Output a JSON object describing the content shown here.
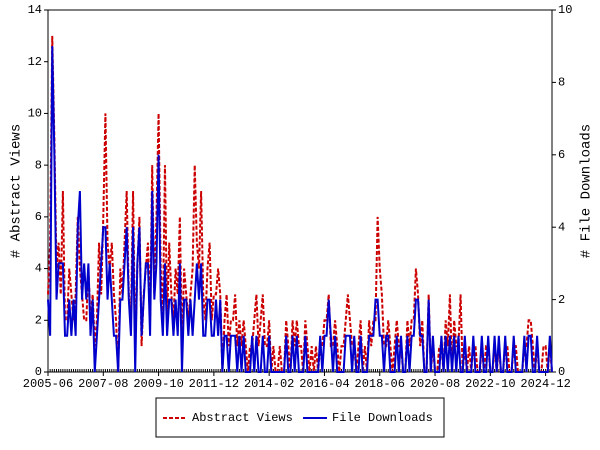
{
  "chart_data": {
    "type": "line",
    "y_label": "# Abstract Views",
    "y2_label": "# File Downloads",
    "x": [
      "2005-06",
      "2005-07",
      "2005-08",
      "2005-09",
      "2005-10",
      "2005-11",
      "2005-12",
      "2006-01",
      "2006-02",
      "2006-03",
      "2006-04",
      "2006-05",
      "2006-06",
      "2006-07",
      "2006-08",
      "2006-09",
      "2006-10",
      "2006-11",
      "2006-12",
      "2007-01",
      "2007-02",
      "2007-03",
      "2007-04",
      "2007-05",
      "2007-06",
      "2007-07",
      "2007-08",
      "2007-09",
      "2007-10",
      "2007-11",
      "2007-12",
      "2008-01",
      "2008-02",
      "2008-03",
      "2008-04",
      "2008-05",
      "2008-06",
      "2008-07",
      "2008-08",
      "2008-09",
      "2008-10",
      "2008-11",
      "2008-12",
      "2009-01",
      "2009-02",
      "2009-03",
      "2009-04",
      "2009-05",
      "2009-06",
      "2009-07",
      "2009-08",
      "2009-09",
      "2009-10",
      "2009-11",
      "2009-12",
      "2010-01",
      "2010-02",
      "2010-03",
      "2010-04",
      "2010-05",
      "2010-06",
      "2010-07",
      "2010-08",
      "2010-09",
      "2010-10",
      "2010-11",
      "2010-12",
      "2011-01",
      "2011-02",
      "2011-03",
      "2011-04",
      "2011-05",
      "2011-06",
      "2011-07",
      "2011-08",
      "2011-09",
      "2011-10",
      "2011-11",
      "2011-12",
      "2012-01",
      "2012-02",
      "2012-03",
      "2012-04",
      "2012-05",
      "2012-06",
      "2012-07",
      "2012-08",
      "2012-09",
      "2012-10",
      "2012-11",
      "2012-12",
      "2013-01",
      "2013-02",
      "2013-03",
      "2013-04",
      "2013-05",
      "2013-06",
      "2013-07",
      "2013-08",
      "2013-09",
      "2013-10",
      "2013-11",
      "2013-12",
      "2014-01",
      "2014-02",
      "2014-03",
      "2014-04",
      "2014-05",
      "2014-06",
      "2014-07",
      "2014-08",
      "2014-09",
      "2014-10",
      "2014-11",
      "2014-12",
      "2015-01",
      "2015-02",
      "2015-03",
      "2015-04",
      "2015-05",
      "2015-06",
      "2015-07",
      "2015-08",
      "2015-09",
      "2015-10",
      "2015-11",
      "2015-12",
      "2016-01",
      "2016-02",
      "2016-03",
      "2016-04",
      "2016-05",
      "2016-06",
      "2016-07",
      "2016-08",
      "2016-09",
      "2016-10",
      "2016-11",
      "2016-12",
      "2017-01",
      "2017-02",
      "2017-03",
      "2017-04",
      "2017-05",
      "2017-06",
      "2017-07",
      "2017-08",
      "2017-09",
      "2017-10",
      "2017-11",
      "2017-12",
      "2018-01",
      "2018-02",
      "2018-03",
      "2018-04",
      "2018-05",
      "2018-06",
      "2018-07",
      "2018-08",
      "2018-09",
      "2018-10",
      "2018-11",
      "2018-12",
      "2019-01",
      "2019-02",
      "2019-03",
      "2019-04",
      "2019-05",
      "2019-06",
      "2019-07",
      "2019-08",
      "2019-09",
      "2019-10",
      "2019-11",
      "2019-12",
      "2020-01",
      "2020-02",
      "2020-03",
      "2020-04",
      "2020-05",
      "2020-06",
      "2020-07",
      "2020-08",
      "2020-09",
      "2020-10",
      "2020-11",
      "2020-12",
      "2021-01",
      "2021-02",
      "2021-03",
      "2021-04",
      "2021-05",
      "2021-06",
      "2021-07",
      "2021-08",
      "2021-09",
      "2021-10",
      "2021-11",
      "2021-12",
      "2022-01",
      "2022-02",
      "2022-03",
      "2022-04",
      "2022-05",
      "2022-06",
      "2022-07",
      "2022-08",
      "2022-09",
      "2022-10",
      "2022-11",
      "2022-12",
      "2023-01",
      "2023-02",
      "2023-03",
      "2023-04",
      "2023-05",
      "2023-06",
      "2023-07",
      "2023-08",
      "2023-09",
      "2023-10",
      "2023-11",
      "2023-12",
      "2024-01",
      "2024-02",
      "2024-03",
      "2024-04",
      "2024-05",
      "2024-06",
      "2024-07",
      "2024-08",
      "2024-09",
      "2024-10",
      "2024-11",
      "2024-12",
      "2025-01",
      "2025-02",
      "2025-03"
    ],
    "xticks": [
      "2005-06",
      "2007-08",
      "2009-10",
      "2011-12",
      "2014-02",
      "2016-04",
      "2018-06",
      "2020-08",
      "2022-10",
      "2024-12"
    ],
    "series": [
      {
        "name": "Abstract Views",
        "color": "#cc0000",
        "dash": true,
        "values": [
          3,
          5,
          13,
          9,
          4,
          5,
          3,
          7,
          2,
          2,
          4,
          3,
          2,
          3,
          6,
          4,
          3,
          2,
          2,
          4,
          2,
          3,
          1,
          2,
          5,
          3,
          6,
          10,
          5,
          4,
          5,
          3,
          2,
          0,
          4,
          3,
          5,
          7,
          3,
          2,
          7,
          1,
          4,
          6,
          1,
          3,
          4,
          5,
          2,
          8,
          3,
          6,
          10,
          4,
          2,
          8,
          2,
          5,
          3,
          2,
          4,
          3,
          6,
          1,
          4,
          3,
          2,
          3,
          4,
          8,
          5,
          4,
          7,
          3,
          2,
          4,
          5,
          2,
          3,
          3,
          4,
          3,
          0,
          2,
          3,
          1,
          2,
          2,
          3,
          1,
          2,
          1,
          2,
          1,
          0,
          1,
          1,
          2,
          3,
          1,
          2,
          3,
          1,
          1,
          2,
          0,
          1,
          0,
          0,
          1,
          0,
          0,
          2,
          1,
          0,
          2,
          1,
          2,
          1,
          1,
          0,
          2,
          1,
          0,
          1,
          0,
          1,
          0,
          1,
          1,
          2,
          2,
          3,
          1,
          1,
          2,
          1,
          0,
          1,
          1,
          2,
          3,
          2,
          1,
          1,
          0,
          1,
          2,
          0,
          1,
          0,
          2,
          1,
          2,
          2,
          6,
          4,
          3,
          1,
          1,
          2,
          1,
          0,
          1,
          2,
          1,
          1,
          0,
          0,
          2,
          1,
          2,
          2,
          4,
          3,
          1,
          2,
          0,
          0,
          3,
          0,
          1,
          0,
          0,
          1,
          1,
          0,
          2,
          1,
          3,
          0,
          2,
          1,
          1,
          3,
          0,
          1,
          0,
          1,
          0,
          1,
          1,
          0,
          0,
          1,
          0,
          1,
          1,
          0,
          0,
          1,
          0,
          1,
          0,
          0,
          1,
          1,
          0,
          0,
          1,
          1,
          0,
          0,
          0,
          1,
          1,
          2,
          2,
          1,
          0,
          1,
          0,
          0,
          1,
          1,
          0,
          1,
          0
        ]
      },
      {
        "name": "File Downloads",
        "color": "#0000cc",
        "axis": "y2",
        "values": [
          2,
          1,
          9,
          6,
          2,
          3,
          3,
          3,
          1,
          1,
          2,
          1,
          2,
          1,
          4,
          5,
          2,
          3,
          2,
          3,
          1,
          2,
          0,
          1,
          2,
          3,
          4,
          4,
          2,
          3,
          2,
          1,
          1,
          0,
          2,
          2,
          3,
          4,
          2,
          1,
          4,
          0,
          3,
          4,
          1,
          2,
          3,
          3,
          1,
          5,
          2,
          3,
          6,
          2,
          1,
          3,
          1,
          2,
          2,
          1,
          2,
          1,
          3,
          0,
          2,
          2,
          1,
          2,
          1,
          2,
          3,
          2,
          3,
          1,
          1,
          2,
          2,
          1,
          1,
          2,
          1,
          2,
          0,
          1,
          1,
          0,
          1,
          1,
          1,
          0,
          1,
          0,
          1,
          0,
          0,
          0,
          1,
          0,
          1,
          0,
          0,
          1,
          0,
          0,
          1,
          0,
          0,
          0,
          0,
          0,
          0,
          0,
          1,
          0,
          0,
          1,
          0,
          1,
          0,
          0,
          0,
          1,
          0,
          0,
          0,
          0,
          0,
          0,
          1,
          0,
          1,
          1,
          2,
          1,
          0,
          1,
          0,
          0,
          0,
          0,
          1,
          1,
          1,
          0,
          1,
          0,
          0,
          1,
          0,
          0,
          0,
          1,
          1,
          1,
          2,
          2,
          1,
          1,
          0,
          1,
          1,
          0,
          0,
          0,
          1,
          0,
          1,
          0,
          0,
          1,
          0,
          1,
          1,
          2,
          2,
          1,
          1,
          0,
          0,
          2,
          0,
          1,
          0,
          0,
          0,
          1,
          0,
          1,
          0,
          1,
          0,
          1,
          0,
          1,
          0,
          0,
          1,
          0,
          0,
          0,
          1,
          0,
          0,
          0,
          1,
          0,
          0,
          1,
          0,
          0,
          1,
          0,
          1,
          0,
          0,
          1,
          0,
          0,
          0,
          1,
          0,
          0,
          0,
          0,
          1,
          0,
          1,
          1,
          0,
          0,
          1,
          0,
          0,
          0,
          0,
          0,
          1,
          0
        ]
      }
    ],
    "ylim": [
      0,
      14
    ],
    "yticks": [
      0,
      2,
      4,
      6,
      8,
      10,
      12,
      14
    ],
    "y2lim": [
      0,
      10
    ],
    "y2ticks": [
      0,
      2,
      4,
      6,
      8,
      10
    ],
    "legend": "bottom"
  }
}
